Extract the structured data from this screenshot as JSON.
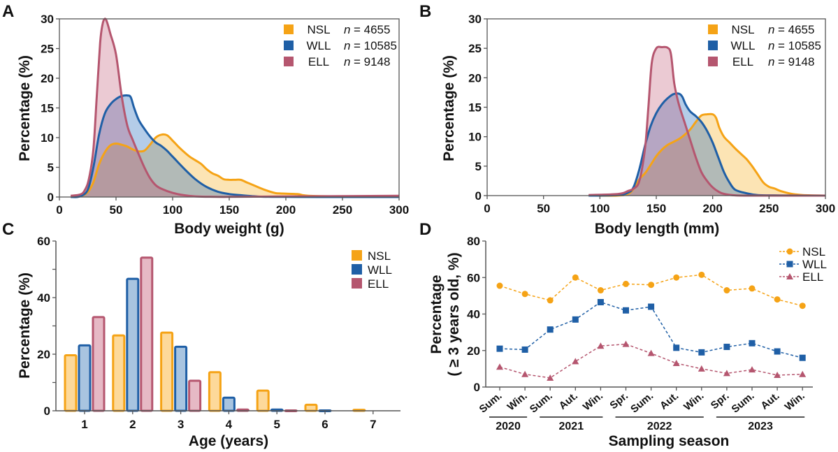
{
  "colors": {
    "NSL": "#f5a316",
    "WLL": "#1f5fa6",
    "ELL": "#b5566f",
    "NSL_fill": "rgba(247,178,40,0.35)",
    "WLL_fill": "rgba(40,110,190,0.35)",
    "ELL_fill": "rgba(190,80,110,0.30)"
  },
  "chart_data": [
    {
      "panel": "A",
      "type": "area",
      "title": "",
      "xlabel": "Body weight (g)",
      "ylabel": "Percentage (%)",
      "xlim": [
        0,
        300
      ],
      "ylim": [
        0,
        30
      ],
      "xticks": [
        "0",
        "50",
        "100",
        "150",
        "200",
        "250",
        "300"
      ],
      "yticks": [
        "0",
        "5",
        "10",
        "15",
        "20",
        "25",
        "30"
      ],
      "legend_position": "top-right",
      "series": [
        {
          "name": "NSL",
          "n_label": "= 4655",
          "x": [
            10,
            18,
            25,
            30,
            35,
            40,
            45,
            50,
            55,
            60,
            65,
            70,
            75,
            80,
            85,
            90,
            95,
            100,
            105,
            110,
            115,
            120,
            125,
            130,
            135,
            140,
            145,
            150,
            155,
            160,
            165,
            170,
            180,
            190,
            195,
            210,
            215,
            220,
            230,
            250,
            270,
            280,
            300
          ],
          "y": [
            0,
            0.1,
            0.8,
            2.5,
            5.5,
            7.5,
            8.7,
            9.0,
            8.8,
            8.5,
            8.0,
            7.7,
            7.8,
            8.8,
            10.0,
            10.5,
            10.4,
            9.5,
            8.5,
            7.6,
            6.8,
            6.2,
            5.6,
            4.7,
            4.0,
            3.6,
            3.0,
            2.9,
            2.9,
            2.9,
            2.5,
            2.1,
            1.3,
            0.7,
            0.6,
            0.5,
            0.3,
            0.2,
            0.15,
            0.08,
            0.1,
            0.05,
            0
          ]
        },
        {
          "name": "WLL",
          "n_label": "= 10585",
          "x": [
            10,
            18,
            25,
            30,
            35,
            40,
            45,
            50,
            55,
            60,
            63,
            66,
            70,
            75,
            80,
            85,
            90,
            95,
            100,
            110,
            120,
            130,
            140,
            150,
            160,
            170,
            180,
            200,
            230,
            300
          ],
          "y": [
            0,
            0.1,
            1.2,
            5.0,
            10.5,
            14.0,
            15.6,
            16.5,
            17.0,
            17.1,
            16.8,
            15.0,
            13.0,
            11.5,
            10.2,
            9.2,
            8.6,
            7.8,
            6.8,
            4.8,
            3.0,
            1.7,
            0.9,
            0.5,
            0.3,
            0.15,
            0.05,
            0.02,
            0,
            0
          ]
        },
        {
          "name": "ELL",
          "n_label": "= 9148",
          "x": [
            10,
            18,
            22,
            26,
            30,
            33,
            36,
            38,
            40,
            42,
            45,
            50,
            55,
            60,
            65,
            70,
            75,
            80,
            85,
            90,
            100,
            110,
            120,
            130,
            150,
            200,
            300
          ],
          "y": [
            0.2,
            0.4,
            1.0,
            3.0,
            8.0,
            17.0,
            26.0,
            29.0,
            30.0,
            29.5,
            27.5,
            24.0,
            17.0,
            12.0,
            9.5,
            7.2,
            5.0,
            3.2,
            2.0,
            1.4,
            0.7,
            0.3,
            0.1,
            0.05,
            0.02,
            0.1,
            0.2
          ]
        }
      ]
    },
    {
      "panel": "B",
      "type": "area",
      "title": "",
      "xlabel": "Body length (mm)",
      "ylabel": "Percentage (%)",
      "xlim": [
        0,
        300
      ],
      "ylim": [
        0,
        30
      ],
      "xticks": [
        "0",
        "50",
        "100",
        "150",
        "200",
        "250",
        "300"
      ],
      "yticks": [
        "0",
        "5",
        "10",
        "15",
        "20",
        "25",
        "30"
      ],
      "legend_position": "top-right",
      "series": [
        {
          "name": "NSL",
          "n_label": "= 4655",
          "x": [
            90,
            115,
            125,
            130,
            135,
            140,
            145,
            150,
            155,
            160,
            165,
            170,
            175,
            180,
            185,
            190,
            195,
            200,
            203,
            206,
            210,
            215,
            220,
            225,
            230,
            235,
            240,
            245,
            250,
            255,
            260,
            270,
            280,
            300
          ],
          "y": [
            0,
            0,
            0.3,
            1.2,
            2.8,
            3.8,
            5.2,
            6.7,
            7.8,
            8.6,
            9.1,
            9.6,
            10.3,
            11.2,
            12.5,
            13.6,
            13.8,
            13.8,
            13.2,
            11.5,
            10.0,
            9.0,
            8.0,
            7.1,
            6.2,
            5.0,
            3.6,
            2.2,
            1.5,
            1.2,
            0.8,
            0.3,
            0.1,
            0
          ]
        },
        {
          "name": "WLL",
          "n_label": "= 10585",
          "x": [
            90,
            115,
            125,
            130,
            135,
            140,
            145,
            150,
            155,
            160,
            165,
            170,
            173,
            176,
            180,
            185,
            190,
            195,
            200,
            205,
            210,
            215,
            220,
            230,
            240,
            260,
            300
          ],
          "y": [
            0,
            0.1,
            0.5,
            1.5,
            4.5,
            8.5,
            11.8,
            14.0,
            15.5,
            16.5,
            17.2,
            17.3,
            16.8,
            15.5,
            14.3,
            13.5,
            12.5,
            11.0,
            9.0,
            6.5,
            4.0,
            2.2,
            1.0,
            0.4,
            0.1,
            0.03,
            0
          ]
        },
        {
          "name": "ELL",
          "n_label": "= 9148",
          "x": [
            90,
            110,
            120,
            125,
            130,
            135,
            140,
            143,
            146,
            150,
            155,
            160,
            163,
            166,
            170,
            175,
            180,
            185,
            190,
            195,
            200,
            205,
            210,
            220,
            240,
            300
          ],
          "y": [
            0.1,
            0.2,
            0.4,
            0.8,
            1.2,
            2.5,
            8.0,
            15.0,
            22.5,
            25.0,
            25.2,
            25.1,
            24.0,
            19.0,
            15.5,
            12.5,
            9.5,
            6.5,
            4.0,
            2.5,
            1.4,
            0.7,
            0.3,
            0.05,
            0,
            0
          ]
        }
      ]
    },
    {
      "panel": "C",
      "type": "bar",
      "title": "",
      "xlabel": "Age (years)",
      "ylabel": "Percentage (%)",
      "ylim": [
        0,
        60
      ],
      "categories": [
        "1",
        "2",
        "3",
        "4",
        "5",
        "6",
        "7"
      ],
      "yticks": [
        "0",
        "20",
        "40",
        "60"
      ],
      "legend_position": "top-right",
      "series": [
        {
          "name": "NSL",
          "values": [
            20,
            27,
            28,
            14,
            7.5,
            2.5,
            0.7
          ]
        },
        {
          "name": "WLL",
          "values": [
            23.5,
            47,
            23,
            5,
            0.8,
            0.5,
            0
          ]
        },
        {
          "name": "ELL",
          "values": [
            33.5,
            54.5,
            11,
            0.8,
            0.5,
            0,
            0
          ]
        }
      ]
    },
    {
      "panel": "D",
      "type": "line",
      "title": "",
      "xlabel": "Sampling season",
      "ylabel_line1": "Percentage",
      "ylabel_line2": "( ≥ 3 years old, %)",
      "ylim": [
        0,
        80
      ],
      "yticks": [
        "0",
        "20",
        "40",
        "60",
        "80"
      ],
      "categories": [
        "Sum.",
        "Win.",
        "Sum.",
        "Aut.",
        "Win.",
        "Spr.",
        "Sum.",
        "Aut.",
        "Win.",
        "Spr.",
        "Sum.",
        "Aut.",
        "Win."
      ],
      "year_groups": [
        {
          "label": "2020",
          "start": 0,
          "end": 1
        },
        {
          "label": "2021",
          "start": 2,
          "end": 4
        },
        {
          "label": "2022",
          "start": 5,
          "end": 8
        },
        {
          "label": "2023",
          "start": 9,
          "end": 12
        }
      ],
      "legend_position": "top-right",
      "series": [
        {
          "name": "NSL",
          "marker": "circle",
          "values": [
            55.5,
            51,
            47.5,
            60,
            53,
            56.5,
            56,
            60,
            61.5,
            53,
            54,
            48,
            44.5
          ]
        },
        {
          "name": "WLL",
          "marker": "square",
          "values": [
            21,
            20.5,
            31.5,
            37,
            46.5,
            42,
            44,
            21.5,
            19,
            22,
            24,
            19.5,
            16
          ]
        },
        {
          "name": "ELL",
          "marker": "triangle",
          "values": [
            11,
            7,
            5,
            14,
            22.5,
            23.5,
            18.5,
            13,
            10,
            7.5,
            9.5,
            6.5,
            7
          ]
        }
      ]
    }
  ],
  "panels": {
    "A": {
      "letter": "A"
    },
    "B": {
      "letter": "B"
    },
    "C": {
      "letter": "C"
    },
    "D": {
      "letter": "D"
    }
  },
  "legend_n_symbol": "n"
}
